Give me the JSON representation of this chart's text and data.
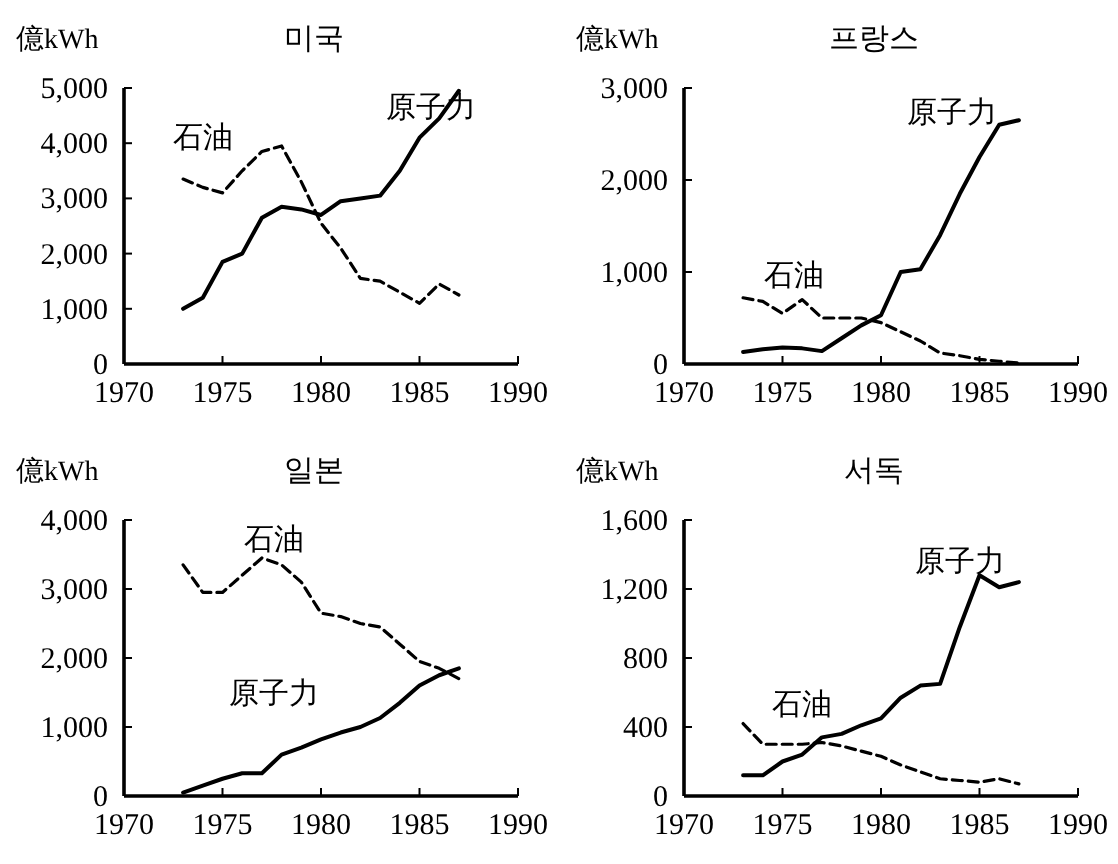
{
  "chart_data": [
    {
      "type": "line",
      "title": "미국",
      "ylabel": "億kWh",
      "x": [
        1973,
        1974,
        1975,
        1976,
        1977,
        1978,
        1979,
        1980,
        1981,
        1982,
        1983,
        1984,
        1985,
        1986,
        1987
      ],
      "xlim": [
        1970,
        1990
      ],
      "xticks": [
        1970,
        1975,
        1980,
        1985,
        1990
      ],
      "ylim": [
        0,
        5000
      ],
      "yticks": [
        {
          "value": 0,
          "label": "0"
        },
        {
          "value": 1000,
          "label": "1,000"
        },
        {
          "value": 2000,
          "label": "2,000"
        },
        {
          "value": 3000,
          "label": "3,000"
        },
        {
          "value": 4000,
          "label": "4,000"
        },
        {
          "value": 5000,
          "label": "5,000"
        }
      ],
      "series": [
        {
          "name": "石油",
          "color": "#000000",
          "line_style": "dashed",
          "values": [
            3350,
            3200,
            3100,
            3500,
            3850,
            3950,
            3300,
            2550,
            2100,
            1550,
            1500,
            1300,
            1100,
            1450,
            1250
          ]
        },
        {
          "name": "原子力",
          "color": "#000000",
          "line_style": "solid",
          "values": [
            1000,
            1200,
            1850,
            2000,
            2650,
            2850,
            2800,
            2700,
            2950,
            3000,
            3050,
            3500,
            4100,
            4450,
            4950
          ]
        }
      ]
    },
    {
      "type": "line",
      "title": "프랑스",
      "ylabel": "億kWh",
      "x": [
        1973,
        1974,
        1975,
        1976,
        1977,
        1978,
        1979,
        1980,
        1981,
        1982,
        1983,
        1984,
        1985,
        1986,
        1987
      ],
      "xlim": [
        1970,
        1990
      ],
      "xticks": [
        1970,
        1975,
        1980,
        1985,
        1990
      ],
      "ylim": [
        0,
        3000
      ],
      "yticks": [
        {
          "value": 0,
          "label": "0"
        },
        {
          "value": 1000,
          "label": "1,000"
        },
        {
          "value": 2000,
          "label": "2,000"
        },
        {
          "value": 3000,
          "label": "3,000"
        }
      ],
      "series": [
        {
          "name": "石油",
          "color": "#000000",
          "line_style": "dashed",
          "values": [
            720,
            680,
            550,
            700,
            500,
            500,
            500,
            450,
            350,
            250,
            120,
            90,
            50,
            30,
            10
          ]
        },
        {
          "name": "原子力",
          "color": "#000000",
          "line_style": "solid",
          "values": [
            130,
            160,
            180,
            170,
            140,
            280,
            420,
            530,
            1000,
            1030,
            1400,
            1850,
            2250,
            2600,
            2650
          ]
        }
      ]
    },
    {
      "type": "line",
      "title": "일본",
      "ylabel": "億kWh",
      "x": [
        1973,
        1974,
        1975,
        1976,
        1977,
        1978,
        1979,
        1980,
        1981,
        1982,
        1983,
        1984,
        1985,
        1986,
        1987
      ],
      "xlim": [
        1970,
        1990
      ],
      "xticks": [
        1970,
        1975,
        1980,
        1985,
        1990
      ],
      "ylim": [
        0,
        4000
      ],
      "yticks": [
        {
          "value": 0,
          "label": "0"
        },
        {
          "value": 1000,
          "label": "1,000"
        },
        {
          "value": 2000,
          "label": "2,000"
        },
        {
          "value": 3000,
          "label": "3,000"
        },
        {
          "value": 4000,
          "label": "4,000"
        }
      ],
      "series": [
        {
          "name": "石油",
          "color": "#000000",
          "line_style": "dashed",
          "values": [
            3350,
            2950,
            2950,
            3200,
            3450,
            3350,
            3100,
            2650,
            2600,
            2500,
            2450,
            2200,
            1950,
            1850,
            1700
          ]
        },
        {
          "name": "原子力",
          "color": "#000000",
          "line_style": "solid",
          "values": [
            50,
            150,
            250,
            330,
            330,
            600,
            700,
            820,
            920,
            1000,
            1130,
            1350,
            1600,
            1750,
            1850
          ]
        }
      ]
    },
    {
      "type": "line",
      "title": "서독",
      "ylabel": "億kWh",
      "x": [
        1973,
        1974,
        1975,
        1976,
        1977,
        1978,
        1979,
        1980,
        1981,
        1982,
        1983,
        1984,
        1985,
        1986,
        1987
      ],
      "xlim": [
        1970,
        1990
      ],
      "xticks": [
        1970,
        1975,
        1980,
        1985,
        1990
      ],
      "ylim": [
        0,
        1600
      ],
      "yticks": [
        {
          "value": 0,
          "label": "0"
        },
        {
          "value": 400,
          "label": "400"
        },
        {
          "value": 800,
          "label": "800"
        },
        {
          "value": 1200,
          "label": "1,200"
        },
        {
          "value": 1600,
          "label": "1,600"
        }
      ],
      "series": [
        {
          "name": "石油",
          "color": "#000000",
          "line_style": "dashed",
          "values": [
            420,
            300,
            300,
            300,
            310,
            290,
            260,
            230,
            180,
            140,
            100,
            90,
            80,
            100,
            70
          ]
        },
        {
          "name": "原子力",
          "color": "#000000",
          "line_style": "solid",
          "values": [
            120,
            120,
            200,
            240,
            340,
            360,
            410,
            450,
            570,
            640,
            650,
            980,
            1280,
            1210,
            1240
          ]
        }
      ]
    }
  ]
}
